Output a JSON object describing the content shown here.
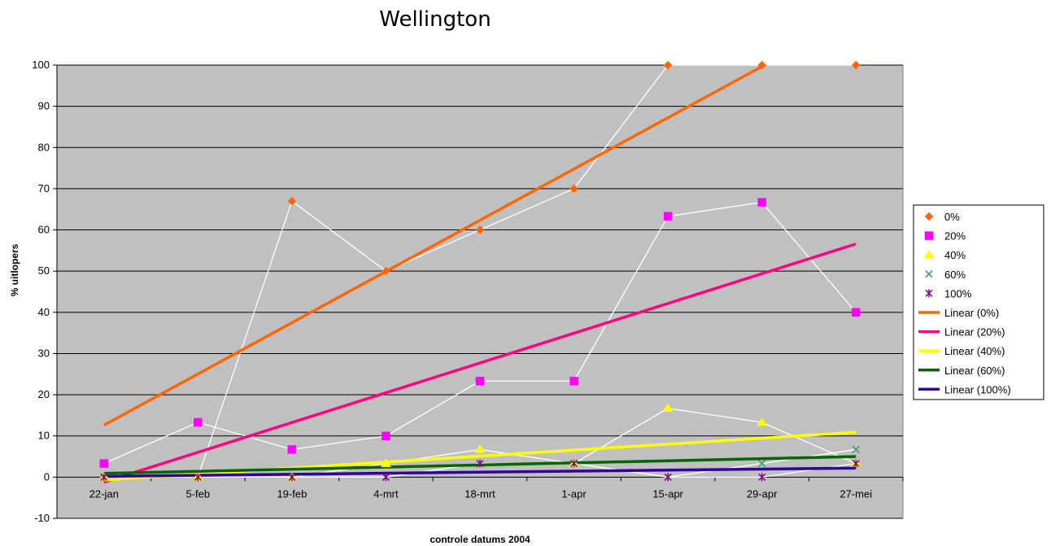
{
  "chart_data": {
    "type": "line",
    "title": "Wellington",
    "xlabel": "controle datums 2004",
    "ylabel": "% uitlopers",
    "ylim": [
      -10,
      100
    ],
    "yticks": [
      -10,
      0,
      10,
      20,
      30,
      40,
      50,
      60,
      70,
      80,
      90,
      100
    ],
    "grid": true,
    "legend_position": "right",
    "categories": [
      "22-jan",
      "5-feb",
      "19-feb",
      "4-mrt",
      "18-mrt",
      "1-apr",
      "15-apr",
      "29-apr",
      "27-mei"
    ],
    "series": [
      {
        "name": "0%",
        "marker": "diamond",
        "color": "#ff6600",
        "values": [
          0,
          0,
          67,
          50,
          60,
          70,
          100,
          100,
          100
        ]
      },
      {
        "name": "20%",
        "marker": "square",
        "color": "#ff00ff",
        "values": [
          3.3,
          13.3,
          6.7,
          10,
          23.3,
          23.3,
          63.3,
          66.7,
          40
        ]
      },
      {
        "name": "40%",
        "marker": "triangle",
        "color": "#ffff00",
        "values": [
          0,
          0,
          0,
          3.3,
          6.7,
          3.3,
          16.7,
          13.3,
          3.3
        ]
      },
      {
        "name": "60%",
        "marker": "x",
        "color": "#339966",
        "values": [
          0,
          0,
          0,
          0,
          3.3,
          3.3,
          0,
          3.3,
          6.7
        ]
      },
      {
        "name": "100%",
        "marker": "star",
        "color": "#800080",
        "values": [
          0,
          0,
          0,
          0,
          3.3,
          3.3,
          0,
          0,
          3.3
        ]
      }
    ],
    "trendlines": [
      {
        "name": "Linear (0%)",
        "color": "#ff6600",
        "from": 12.6,
        "to": 112.1
      },
      {
        "name": "Linear (20%)",
        "color": "#ff0080",
        "from": -1.2,
        "to": 56.6
      },
      {
        "name": "Linear (40%)",
        "color": "#ffff00",
        "from": -0.7,
        "to": 10.9
      },
      {
        "name": "Linear (60%)",
        "color": "#006600",
        "from": 0.9,
        "to": 5.0
      },
      {
        "name": "Linear (100%)",
        "color": "#330099",
        "from": 0.2,
        "to": 2.2
      }
    ],
    "colors": {
      "plot_background": "#c0c0c0",
      "connector_line": "#ffffff"
    }
  }
}
